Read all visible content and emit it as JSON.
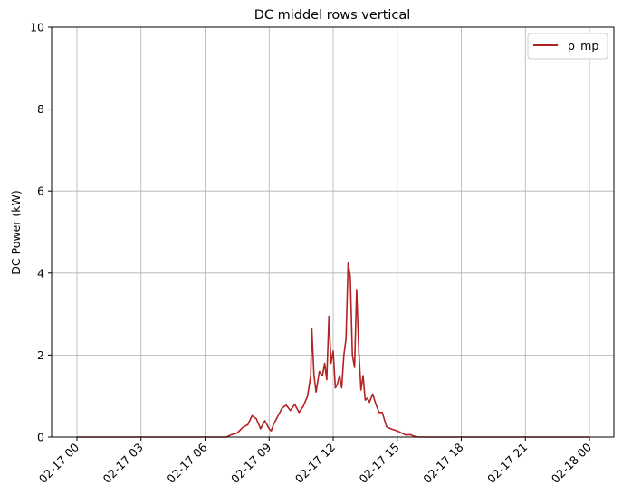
{
  "chart_data": {
    "type": "line",
    "title": "DC middel rows vertical",
    "xlabel": "",
    "ylabel": "DC Power (kW)",
    "ylim": [
      0,
      10
    ],
    "yticks": [
      0,
      2,
      4,
      6,
      8,
      10
    ],
    "xlim_hours": [
      -0.6,
      45.3
    ],
    "xticks": [
      {
        "hour": 0,
        "label": "02-17 00"
      },
      {
        "hour": 3,
        "label": "02-17 03"
      },
      {
        "hour": 6,
        "label": "02-17 06"
      },
      {
        "hour": 9,
        "label": "02-17 09"
      },
      {
        "hour": 12,
        "label": "02-17 12"
      },
      {
        "hour": 15,
        "label": "02-17 15"
      },
      {
        "hour": 18,
        "label": "02-17 18"
      },
      {
        "hour": 21,
        "label": "02-17 21"
      },
      {
        "hour": 24,
        "label": "02-18 00"
      }
    ],
    "grid": true,
    "legend_position": "top-right",
    "series": [
      {
        "name": "p_mp",
        "color": "#b22222",
        "x_hours": [
          0,
          7.0,
          7.2,
          7.5,
          7.8,
          8.0,
          8.2,
          8.4,
          8.6,
          8.8,
          9.0,
          9.1,
          9.2,
          9.4,
          9.6,
          9.8,
          10.0,
          10.2,
          10.4,
          10.6,
          10.8,
          10.95,
          11.0,
          11.1,
          11.2,
          11.35,
          11.5,
          11.6,
          11.7,
          11.8,
          11.9,
          12.0,
          12.1,
          12.2,
          12.3,
          12.4,
          12.5,
          12.6,
          12.7,
          12.8,
          12.9,
          13.0,
          13.1,
          13.2,
          13.3,
          13.4,
          13.5,
          13.6,
          13.7,
          13.85,
          14.0,
          14.15,
          14.3,
          14.5,
          14.7,
          15.0,
          15.2,
          15.4,
          15.6,
          15.8,
          16.0,
          16.3,
          24
        ],
        "values": [
          0,
          0,
          0.05,
          0.1,
          0.25,
          0.3,
          0.52,
          0.45,
          0.2,
          0.4,
          0.2,
          0.15,
          0.3,
          0.5,
          0.7,
          0.78,
          0.65,
          0.8,
          0.6,
          0.75,
          1.0,
          1.5,
          2.65,
          1.5,
          1.1,
          1.6,
          1.5,
          1.8,
          1.4,
          2.95,
          1.8,
          2.1,
          1.2,
          1.3,
          1.5,
          1.2,
          2.0,
          2.4,
          4.25,
          3.9,
          2.0,
          1.7,
          3.6,
          2.1,
          1.15,
          1.5,
          0.9,
          0.95,
          0.85,
          1.05,
          0.8,
          0.6,
          0.6,
          0.25,
          0.2,
          0.15,
          0.1,
          0.05,
          0.06,
          0.02,
          0,
          0,
          0
        ]
      }
    ]
  }
}
